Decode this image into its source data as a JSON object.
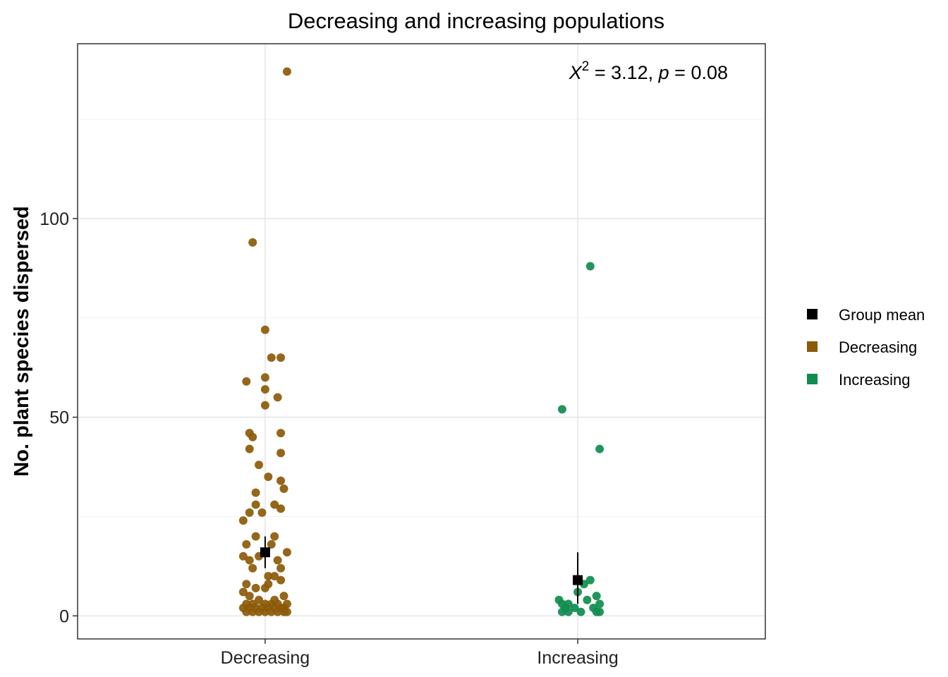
{
  "chart_data": {
    "type": "scatter",
    "title": "Decreasing and increasing populations",
    "xlabel": "",
    "ylabel": "No. plant species dispersed",
    "categories": [
      "Decreasing",
      "Increasing"
    ],
    "ylim": [
      -5.8,
      144
    ],
    "yticks": [
      0,
      50,
      100
    ],
    "grid": true,
    "legend_position": "right",
    "annotation": {
      "symbol": "X",
      "superscript": "2",
      "stat_text": " = 3.12, ",
      "p_symbol": "p",
      "p_text": " = 0.08"
    },
    "colors": {
      "Decreasing": "#8c5a08",
      "Increasing": "#0f8c4e",
      "Group mean": "#000000"
    },
    "series": [
      {
        "name": "Decreasing",
        "category": "Decreasing",
        "points": [
          {
            "jitter": 0.07,
            "y": 137
          },
          {
            "jitter": -0.04,
            "y": 94
          },
          {
            "jitter": 0.0,
            "y": 72
          },
          {
            "jitter": 0.02,
            "y": 65
          },
          {
            "jitter": 0.05,
            "y": 65
          },
          {
            "jitter": -0.06,
            "y": 59
          },
          {
            "jitter": 0.0,
            "y": 60
          },
          {
            "jitter": 0.0,
            "y": 57
          },
          {
            "jitter": 0.04,
            "y": 55
          },
          {
            "jitter": 0.0,
            "y": 53
          },
          {
            "jitter": -0.05,
            "y": 46
          },
          {
            "jitter": -0.04,
            "y": 45
          },
          {
            "jitter": 0.05,
            "y": 46
          },
          {
            "jitter": -0.05,
            "y": 42
          },
          {
            "jitter": 0.05,
            "y": 41
          },
          {
            "jitter": -0.02,
            "y": 38
          },
          {
            "jitter": 0.01,
            "y": 35
          },
          {
            "jitter": 0.05,
            "y": 34
          },
          {
            "jitter": 0.06,
            "y": 32
          },
          {
            "jitter": -0.03,
            "y": 31
          },
          {
            "jitter": -0.03,
            "y": 28
          },
          {
            "jitter": 0.03,
            "y": 28
          },
          {
            "jitter": 0.05,
            "y": 27
          },
          {
            "jitter": -0.05,
            "y": 26
          },
          {
            "jitter": -0.01,
            "y": 26
          },
          {
            "jitter": -0.07,
            "y": 24
          },
          {
            "jitter": -0.03,
            "y": 20
          },
          {
            "jitter": 0.03,
            "y": 20
          },
          {
            "jitter": -0.06,
            "y": 18
          },
          {
            "jitter": 0.02,
            "y": 18
          },
          {
            "jitter": 0.07,
            "y": 16
          },
          {
            "jitter": -0.07,
            "y": 15
          },
          {
            "jitter": -0.05,
            "y": 14
          },
          {
            "jitter": -0.02,
            "y": 15
          },
          {
            "jitter": 0.04,
            "y": 14
          },
          {
            "jitter": -0.04,
            "y": 12
          },
          {
            "jitter": 0.05,
            "y": 12
          },
          {
            "jitter": 0.01,
            "y": 10
          },
          {
            "jitter": 0.03,
            "y": 10
          },
          {
            "jitter": -0.06,
            "y": 8
          },
          {
            "jitter": -0.03,
            "y": 7
          },
          {
            "jitter": 0.0,
            "y": 7
          },
          {
            "jitter": 0.05,
            "y": 9
          },
          {
            "jitter": 0.01,
            "y": 8
          },
          {
            "jitter": -0.07,
            "y": 6
          },
          {
            "jitter": -0.05,
            "y": 5
          },
          {
            "jitter": 0.06,
            "y": 5
          },
          {
            "jitter": 0.03,
            "y": 4
          },
          {
            "jitter": -0.02,
            "y": 4
          },
          {
            "jitter": -0.06,
            "y": 3
          },
          {
            "jitter": -0.04,
            "y": 3
          },
          {
            "jitter": 0.0,
            "y": 3
          },
          {
            "jitter": 0.02,
            "y": 3
          },
          {
            "jitter": 0.04,
            "y": 3
          },
          {
            "jitter": 0.07,
            "y": 3
          },
          {
            "jitter": -0.07,
            "y": 2
          },
          {
            "jitter": -0.05,
            "y": 2
          },
          {
            "jitter": -0.03,
            "y": 2
          },
          {
            "jitter": -0.01,
            "y": 2
          },
          {
            "jitter": 0.01,
            "y": 2
          },
          {
            "jitter": 0.03,
            "y": 2
          },
          {
            "jitter": 0.05,
            "y": 2
          },
          {
            "jitter": 0.06,
            "y": 2
          },
          {
            "jitter": -0.06,
            "y": 1
          },
          {
            "jitter": -0.04,
            "y": 1
          },
          {
            "jitter": -0.02,
            "y": 1
          },
          {
            "jitter": 0.0,
            "y": 1
          },
          {
            "jitter": 0.02,
            "y": 1
          },
          {
            "jitter": 0.04,
            "y": 1
          },
          {
            "jitter": 0.06,
            "y": 1
          },
          {
            "jitter": 0.07,
            "y": 1
          }
        ]
      },
      {
        "name": "Increasing",
        "category": "Increasing",
        "points": [
          {
            "jitter": 0.04,
            "y": 88
          },
          {
            "jitter": -0.05,
            "y": 52
          },
          {
            "jitter": 0.07,
            "y": 42
          },
          {
            "jitter": 0.04,
            "y": 9
          },
          {
            "jitter": 0.02,
            "y": 8
          },
          {
            "jitter": 0.06,
            "y": 5
          },
          {
            "jitter": 0.0,
            "y": 6
          },
          {
            "jitter": 0.03,
            "y": 4
          },
          {
            "jitter": -0.06,
            "y": 4
          },
          {
            "jitter": -0.05,
            "y": 3
          },
          {
            "jitter": -0.03,
            "y": 3
          },
          {
            "jitter": 0.07,
            "y": 3
          },
          {
            "jitter": -0.04,
            "y": 2
          },
          {
            "jitter": -0.01,
            "y": 2
          },
          {
            "jitter": 0.05,
            "y": 2
          },
          {
            "jitter": -0.05,
            "y": 1
          },
          {
            "jitter": -0.03,
            "y": 1
          },
          {
            "jitter": 0.01,
            "y": 1
          },
          {
            "jitter": 0.06,
            "y": 1
          },
          {
            "jitter": 0.07,
            "y": 1
          }
        ]
      },
      {
        "name": "Group mean",
        "points": [
          {
            "category": "Decreasing",
            "y": 16,
            "low": 12,
            "high": 20
          },
          {
            "category": "Increasing",
            "y": 9,
            "low": 3,
            "high": 16
          }
        ]
      }
    ],
    "legend": [
      {
        "label": "Group mean",
        "color": "#000000"
      },
      {
        "label": "Decreasing",
        "color": "#8c5a08"
      },
      {
        "label": "Increasing",
        "color": "#0f8c4e"
      }
    ]
  }
}
